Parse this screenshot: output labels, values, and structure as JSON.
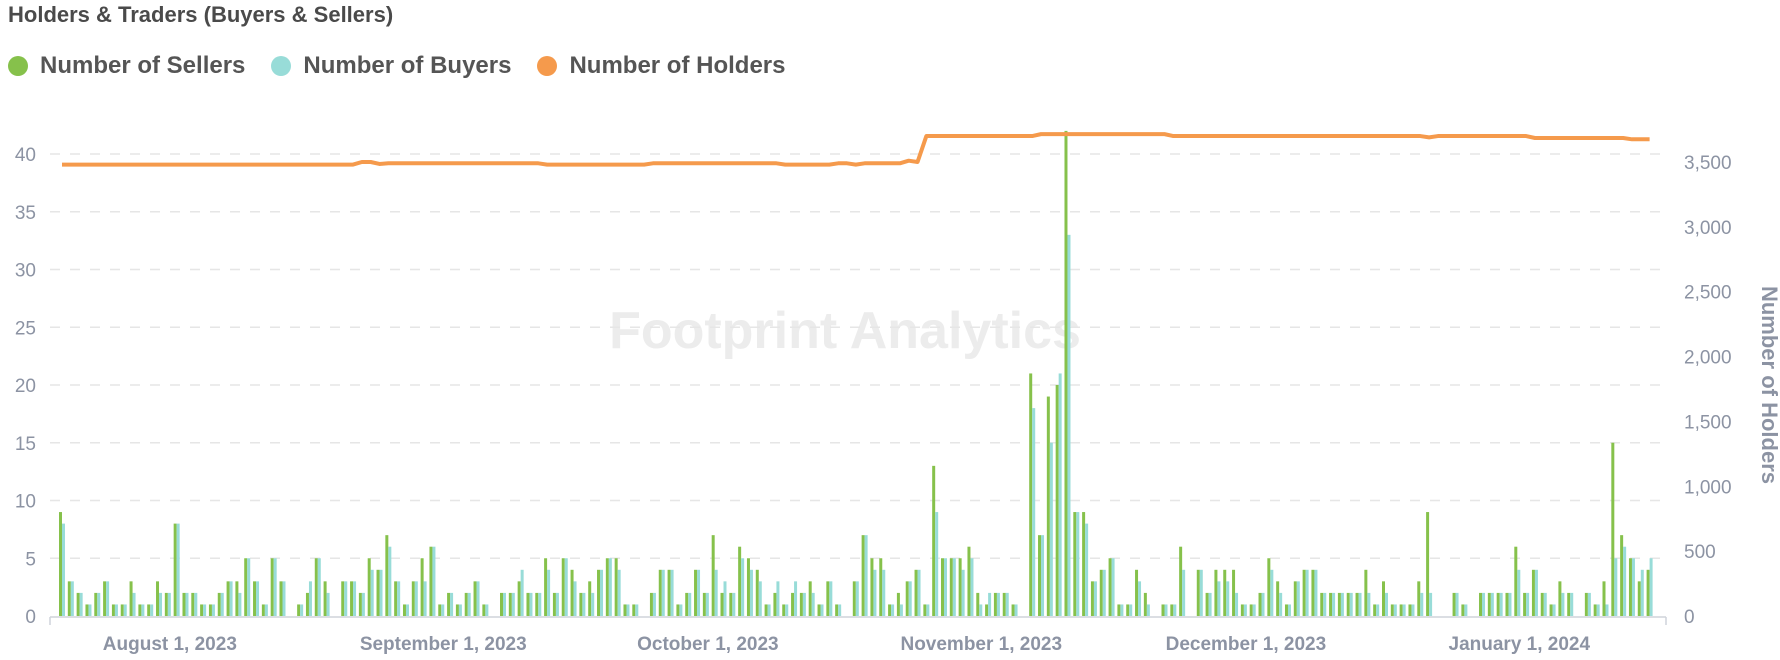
{
  "chart_data": {
    "type": "bar+line",
    "title": "Holders & Traders (Buyers & Sellers)",
    "watermark": "Footprint Analytics",
    "legend_position": "top-left",
    "grid": true,
    "colors": {
      "sellers": "#86c14b",
      "buyers": "#98dcd8",
      "holders": "#f59a4c"
    },
    "series_names": {
      "sellers": "Number of Sellers",
      "buyers": "Number of Buyers",
      "holders": "Number of Holders"
    },
    "y_left": {
      "ticks": [
        "0",
        "5",
        "10",
        "15",
        "20",
        "25",
        "30",
        "35",
        "40"
      ],
      "range": [
        0,
        42
      ]
    },
    "y_right": {
      "label": "Number of Holders",
      "ticks": [
        "0",
        "500",
        "1,000",
        "1,500",
        "2,000",
        "2,500",
        "3,000",
        "3,500"
      ],
      "range": [
        0,
        3700
      ]
    },
    "x_ticks": [
      {
        "date": "2023-08-01",
        "label": "August 1, 2023"
      },
      {
        "date": "2023-09-01",
        "label": "September 1, 2023"
      },
      {
        "date": "2023-10-01",
        "label": "October 1, 2023"
      },
      {
        "date": "2023-11-01",
        "label": "November 1, 2023"
      },
      {
        "date": "2023-12-01",
        "label": "December 1, 2023"
      },
      {
        "date": "2024-01-01",
        "label": "January 1, 2024"
      }
    ],
    "dates": [
      "2023-07-20",
      "2023-07-21",
      "2023-07-22",
      "2023-07-23",
      "2023-07-24",
      "2023-07-25",
      "2023-07-26",
      "2023-07-27",
      "2023-07-28",
      "2023-07-29",
      "2023-07-30",
      "2023-07-31",
      "2023-08-01",
      "2023-08-02",
      "2023-08-03",
      "2023-08-04",
      "2023-08-05",
      "2023-08-06",
      "2023-08-07",
      "2023-08-08",
      "2023-08-09",
      "2023-08-10",
      "2023-08-11",
      "2023-08-12",
      "2023-08-13",
      "2023-08-14",
      "2023-08-15",
      "2023-08-16",
      "2023-08-17",
      "2023-08-18",
      "2023-08-19",
      "2023-08-20",
      "2023-08-21",
      "2023-08-22",
      "2023-08-23",
      "2023-08-24",
      "2023-08-25",
      "2023-08-26",
      "2023-08-27",
      "2023-08-28",
      "2023-08-29",
      "2023-08-30",
      "2023-08-31",
      "2023-09-01",
      "2023-09-02",
      "2023-09-03",
      "2023-09-04",
      "2023-09-05",
      "2023-09-06",
      "2023-09-07",
      "2023-09-08",
      "2023-09-09",
      "2023-09-10",
      "2023-09-11",
      "2023-09-12",
      "2023-09-13",
      "2023-09-14",
      "2023-09-15",
      "2023-09-16",
      "2023-09-17",
      "2023-09-18",
      "2023-09-19",
      "2023-09-20",
      "2023-09-21",
      "2023-09-22",
      "2023-09-23",
      "2023-09-24",
      "2023-09-25",
      "2023-09-26",
      "2023-09-27",
      "2023-09-28",
      "2023-09-29",
      "2023-09-30",
      "2023-10-01",
      "2023-10-02",
      "2023-10-03",
      "2023-10-04",
      "2023-10-05",
      "2023-10-06",
      "2023-10-07",
      "2023-10-08",
      "2023-10-09",
      "2023-10-10",
      "2023-10-11",
      "2023-10-12",
      "2023-10-13",
      "2023-10-14",
      "2023-10-15",
      "2023-10-16",
      "2023-10-17",
      "2023-10-18",
      "2023-10-19",
      "2023-10-20",
      "2023-10-21",
      "2023-10-22",
      "2023-10-23",
      "2023-10-24",
      "2023-10-25",
      "2023-10-26",
      "2023-10-27",
      "2023-10-28",
      "2023-10-29",
      "2023-10-30",
      "2023-10-31",
      "2023-11-01",
      "2023-11-02",
      "2023-11-03",
      "2023-11-04",
      "2023-11-05",
      "2023-11-06",
      "2023-11-07",
      "2023-11-08",
      "2023-11-09",
      "2023-11-10",
      "2023-11-11",
      "2023-11-12",
      "2023-11-13",
      "2023-11-14",
      "2023-11-15",
      "2023-11-16",
      "2023-11-17",
      "2023-11-18",
      "2023-11-19",
      "2023-11-20",
      "2023-11-21",
      "2023-11-22",
      "2023-11-23",
      "2023-11-24",
      "2023-11-25",
      "2023-11-26",
      "2023-11-27",
      "2023-11-28",
      "2023-11-29",
      "2023-11-30",
      "2023-12-01",
      "2023-12-02",
      "2023-12-03",
      "2023-12-04",
      "2023-12-05",
      "2023-12-06",
      "2023-12-07",
      "2023-12-08",
      "2023-12-09",
      "2023-12-10",
      "2023-12-11",
      "2023-12-12",
      "2023-12-13",
      "2023-12-14",
      "2023-12-15",
      "2023-12-16",
      "2023-12-17",
      "2023-12-18",
      "2023-12-19",
      "2023-12-20",
      "2023-12-21",
      "2023-12-22",
      "2023-12-23",
      "2023-12-24",
      "2023-12-25",
      "2023-12-26",
      "2023-12-27",
      "2023-12-28",
      "2023-12-29",
      "2023-12-30",
      "2023-12-31",
      "2024-01-01",
      "2024-01-02",
      "2024-01-03",
      "2024-01-04",
      "2024-01-05",
      "2024-01-06",
      "2024-01-07",
      "2024-01-08",
      "2024-01-09",
      "2024-01-10",
      "2024-01-11",
      "2024-01-12",
      "2024-01-13",
      "2024-01-14",
      "2024-01-15",
      "2024-01-16"
    ],
    "sellers": [
      9,
      3,
      2,
      1,
      2,
      3,
      1,
      1,
      3,
      1,
      1,
      3,
      2,
      8,
      2,
      2,
      1,
      1,
      2,
      3,
      3,
      5,
      3,
      1,
      5,
      3,
      0,
      1,
      2,
      5,
      3,
      0,
      3,
      3,
      2,
      5,
      4,
      7,
      3,
      1,
      3,
      5,
      6,
      1,
      2,
      1,
      2,
      3,
      1,
      0,
      2,
      2,
      3,
      2,
      2,
      5,
      2,
      5,
      4,
      2,
      3,
      4,
      5,
      5,
      1,
      1,
      0,
      2,
      4,
      4,
      1,
      2,
      4,
      2,
      7,
      2,
      2,
      6,
      5,
      4,
      1,
      2,
      1,
      2,
      2,
      3,
      1,
      3,
      1,
      0,
      3,
      7,
      5,
      5,
      1,
      2,
      3,
      4,
      1,
      13,
      5,
      5,
      5,
      6,
      2,
      1,
      2,
      2,
      1,
      0,
      21,
      7,
      19,
      20,
      42,
      9,
      9,
      3,
      4,
      5,
      1,
      1,
      4,
      2,
      0,
      1,
      1,
      6,
      0,
      4,
      2,
      4,
      4,
      4,
      1,
      1,
      2,
      5,
      3,
      1,
      3,
      4,
      4,
      2,
      2,
      2,
      2,
      2,
      4,
      1,
      3,
      1,
      1,
      1,
      3,
      9,
      0,
      0,
      2,
      1,
      0,
      2,
      2,
      2,
      2,
      6,
      2,
      4,
      2,
      1,
      3,
      2,
      0,
      2,
      1,
      3,
      15,
      7,
      5,
      3,
      4
    ],
    "buyers": [
      8,
      3,
      2,
      1,
      2,
      3,
      1,
      1,
      2,
      1,
      1,
      2,
      2,
      8,
      2,
      2,
      1,
      1,
      2,
      3,
      2,
      5,
      3,
      1,
      5,
      3,
      0,
      1,
      3,
      5,
      2,
      0,
      3,
      3,
      2,
      4,
      4,
      6,
      3,
      1,
      3,
      3,
      6,
      1,
      2,
      1,
      2,
      3,
      1,
      0,
      2,
      2,
      4,
      2,
      2,
      4,
      2,
      5,
      3,
      2,
      2,
      4,
      5,
      4,
      1,
      1,
      0,
      2,
      4,
      4,
      1,
      2,
      4,
      2,
      4,
      3,
      2,
      5,
      4,
      3,
      1,
      3,
      1,
      3,
      2,
      2,
      1,
      3,
      1,
      0,
      3,
      7,
      4,
      4,
      1,
      1,
      3,
      4,
      1,
      9,
      5,
      5,
      4,
      5,
      1,
      2,
      2,
      2,
      1,
      0,
      18,
      7,
      15,
      21,
      33,
      9,
      8,
      3,
      4,
      5,
      1,
      1,
      3,
      1,
      0,
      1,
      1,
      4,
      0,
      4,
      2,
      3,
      3,
      2,
      1,
      1,
      2,
      4,
      2,
      1,
      3,
      4,
      4,
      2,
      2,
      2,
      2,
      2,
      2,
      1,
      2,
      1,
      1,
      1,
      2,
      2,
      0,
      0,
      2,
      1,
      0,
      2,
      2,
      2,
      2,
      4,
      2,
      4,
      2,
      1,
      2,
      2,
      0,
      2,
      1,
      1,
      5,
      6,
      5,
      4,
      5
    ],
    "holders": [
      {
        "date": "2023-07-20",
        "value": 3480
      },
      {
        "date": "2023-08-22",
        "value": 3480
      },
      {
        "date": "2023-08-23",
        "value": 3500
      },
      {
        "date": "2023-08-24",
        "value": 3500
      },
      {
        "date": "2023-08-25",
        "value": 3485
      },
      {
        "date": "2023-08-26",
        "value": 3490
      },
      {
        "date": "2023-09-12",
        "value": 3490
      },
      {
        "date": "2023-09-13",
        "value": 3480
      },
      {
        "date": "2023-09-24",
        "value": 3480
      },
      {
        "date": "2023-09-25",
        "value": 3490
      },
      {
        "date": "2023-10-09",
        "value": 3490
      },
      {
        "date": "2023-10-10",
        "value": 3480
      },
      {
        "date": "2023-10-15",
        "value": 3480
      },
      {
        "date": "2023-10-16",
        "value": 3490
      },
      {
        "date": "2023-10-17",
        "value": 3490
      },
      {
        "date": "2023-10-18",
        "value": 3480
      },
      {
        "date": "2023-10-19",
        "value": 3490
      },
      {
        "date": "2023-10-23",
        "value": 3490
      },
      {
        "date": "2023-10-24",
        "value": 3510
      },
      {
        "date": "2023-10-25",
        "value": 3500
      },
      {
        "date": "2023-10-26",
        "value": 3700
      },
      {
        "date": "2023-11-07",
        "value": 3700
      },
      {
        "date": "2023-11-08",
        "value": 3715
      },
      {
        "date": "2023-11-22",
        "value": 3715
      },
      {
        "date": "2023-11-23",
        "value": 3700
      },
      {
        "date": "2023-12-21",
        "value": 3700
      },
      {
        "date": "2023-12-22",
        "value": 3690
      },
      {
        "date": "2023-12-23",
        "value": 3700
      },
      {
        "date": "2024-01-02",
        "value": 3700
      },
      {
        "date": "2024-01-03",
        "value": 3685
      },
      {
        "date": "2024-01-13",
        "value": 3685
      },
      {
        "date": "2024-01-14",
        "value": 3675
      },
      {
        "date": "2024-01-16",
        "value": 3675
      }
    ]
  }
}
